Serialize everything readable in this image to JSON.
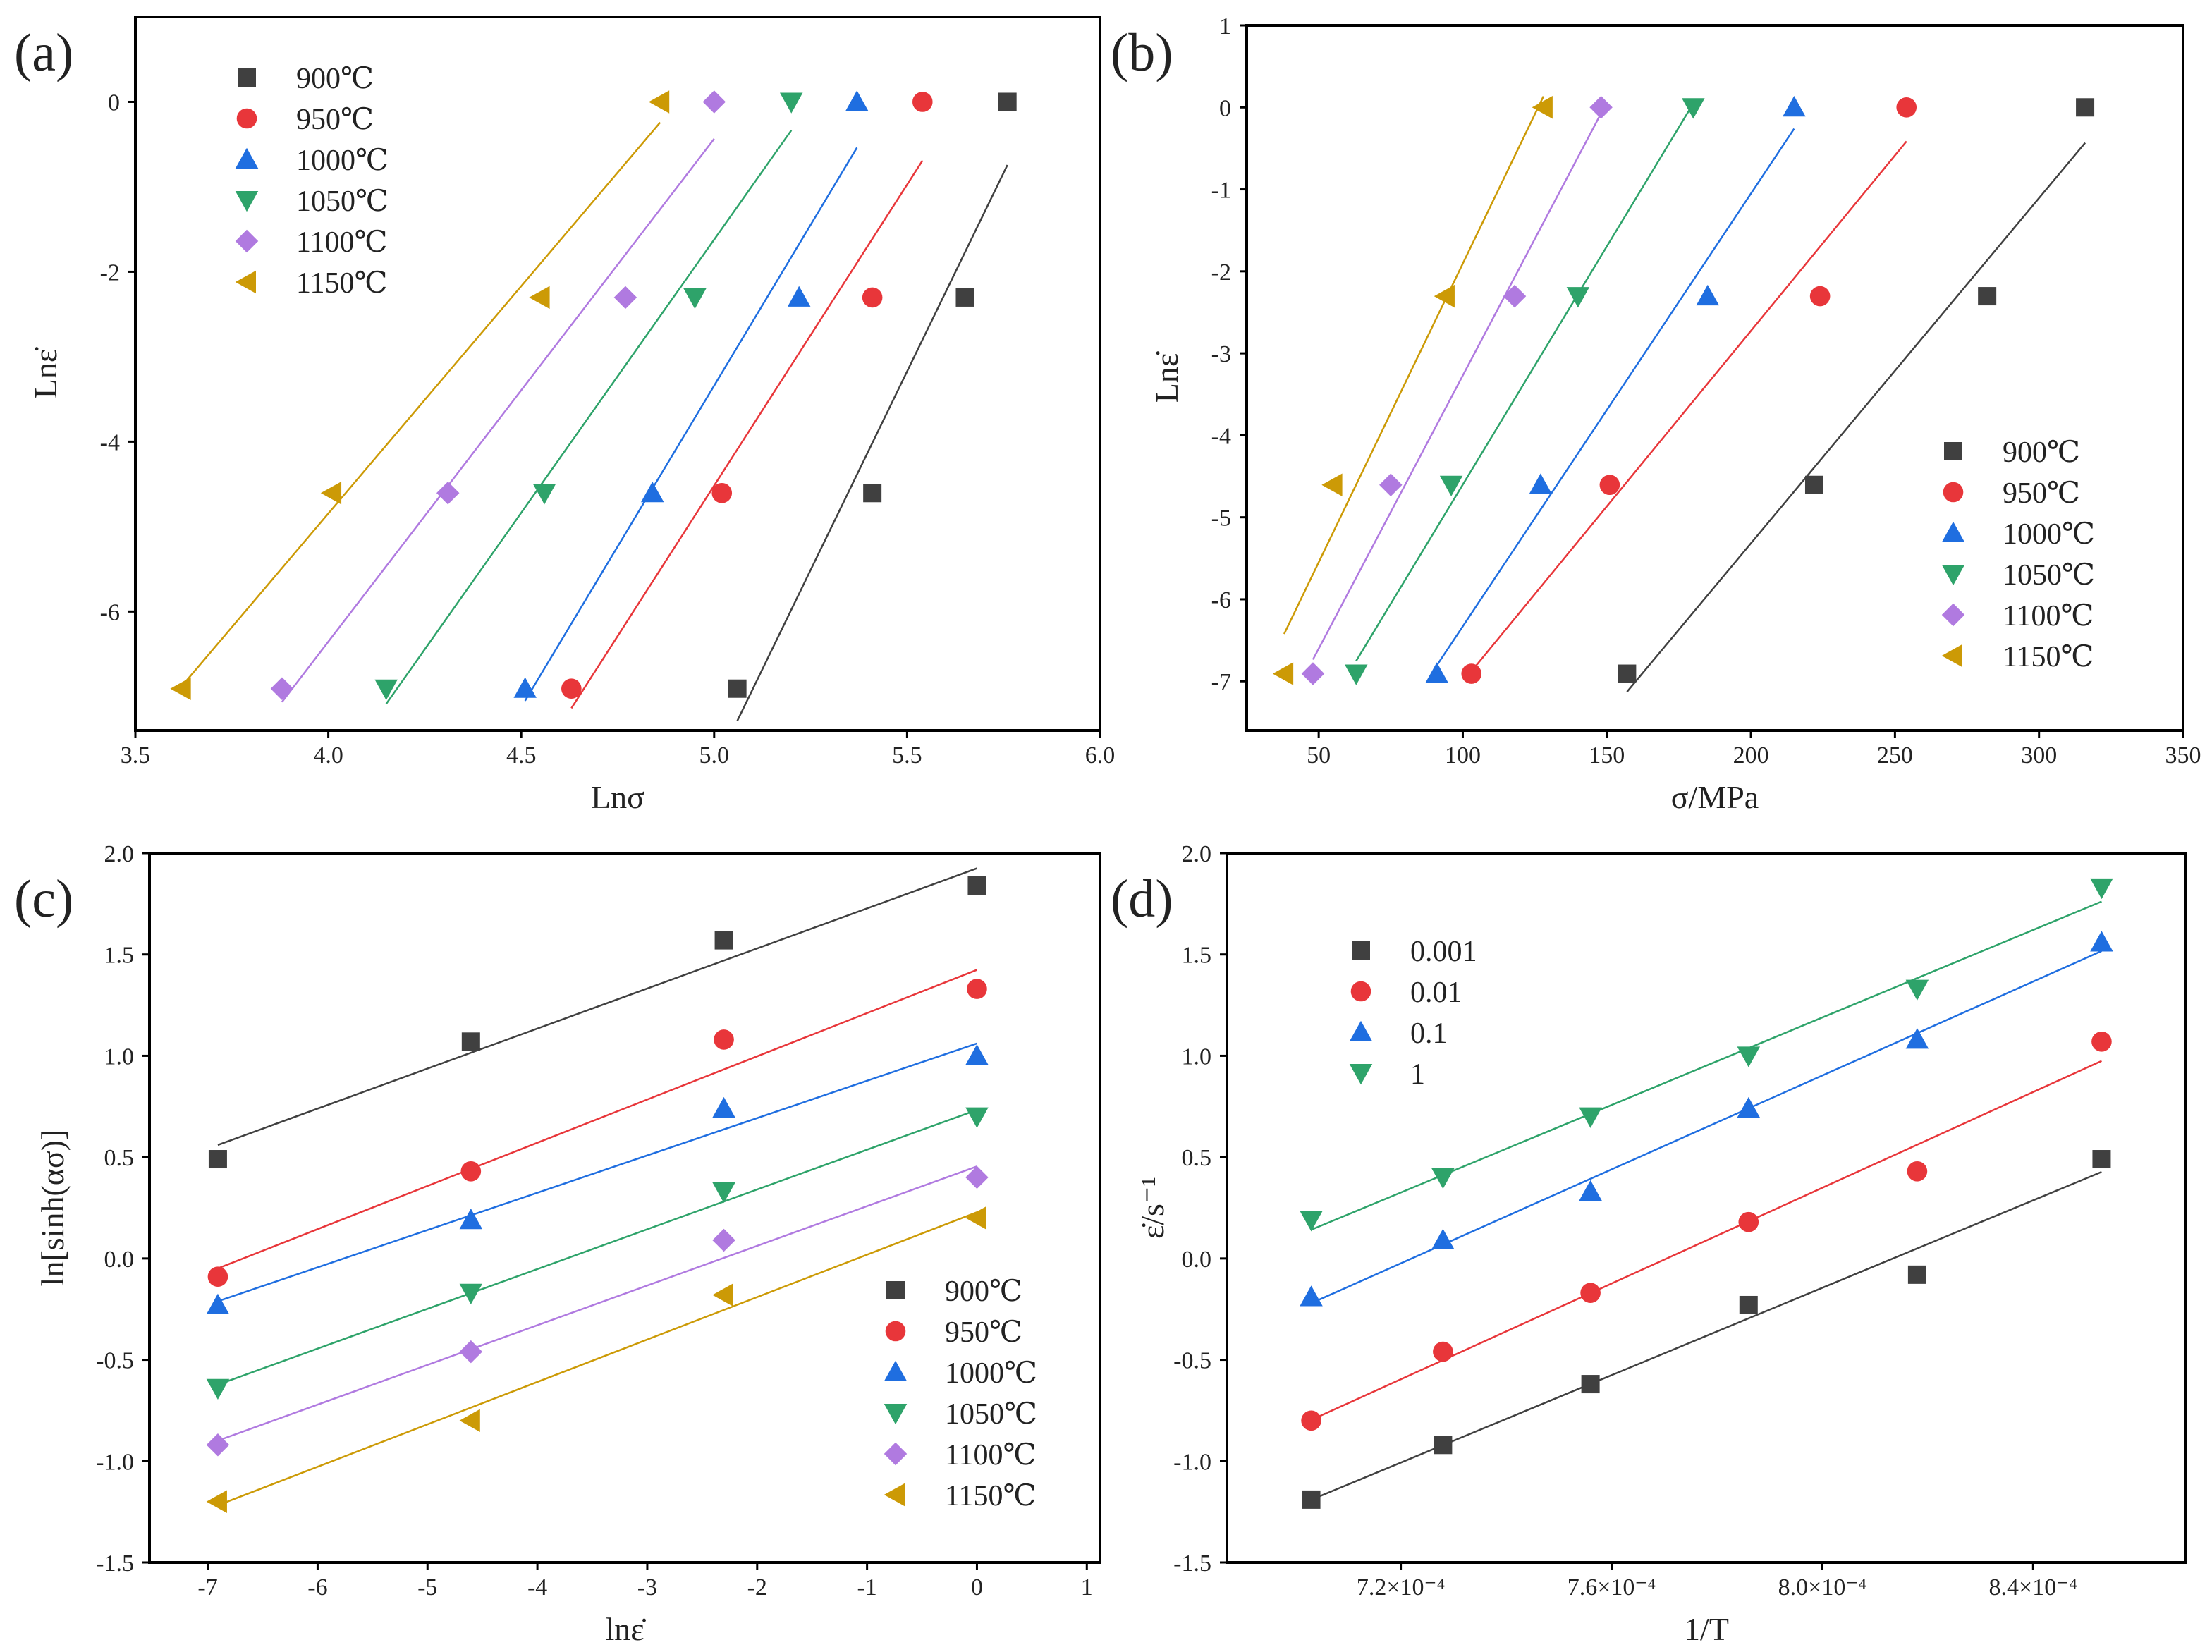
{
  "colors": {
    "900": "#404040",
    "950": "#e8363a",
    "1000": "#1f6ee0",
    "1050": "#2ea36a",
    "1100": "#b07ae0",
    "1150": "#cc9a06"
  },
  "chart_data": [
    {
      "panel": "(a)",
      "type": "scatter",
      "xlabel": "Lnσ",
      "ylabel": "Lnε̇",
      "xlim": [
        3.5,
        6.0
      ],
      "ylim": [
        -7.4,
        1.0
      ],
      "xticks": [
        3.5,
        4.0,
        4.5,
        5.0,
        5.5,
        6.0
      ],
      "xtick_labels": [
        "3.5",
        "4.0",
        "4.5",
        "5.0",
        "5.5",
        "6.0"
      ],
      "yticks": [
        0,
        -2,
        -4,
        -6
      ],
      "ytick_labels": [
        "0",
        "-2",
        "-4",
        "-6"
      ],
      "legend_position": "top-left",
      "y": [
        0,
        -2.303,
        -4.605,
        -6.908
      ],
      "series": [
        {
          "name": "900℃",
          "marker": "square",
          "color": "#404040",
          "x": [
            5.76,
            5.65,
            5.41,
            5.06
          ]
        },
        {
          "name": "950℃",
          "marker": "circle",
          "color": "#e8363a",
          "x": [
            5.54,
            5.41,
            5.02,
            4.63
          ]
        },
        {
          "name": "1000℃",
          "marker": "triangle-up",
          "color": "#1f6ee0",
          "x": [
            5.37,
            5.22,
            4.84,
            4.51
          ]
        },
        {
          "name": "1050℃",
          "marker": "triangle-down",
          "color": "#2ea36a",
          "x": [
            5.2,
            4.95,
            4.56,
            4.15
          ]
        },
        {
          "name": "1100℃",
          "marker": "diamond",
          "color": "#b07ae0",
          "x": [
            5.0,
            4.77,
            4.31,
            3.88
          ]
        },
        {
          "name": "1150℃",
          "marker": "triangle-left",
          "color": "#cc9a06",
          "x": [
            4.86,
            4.55,
            4.01,
            3.62
          ]
        }
      ]
    },
    {
      "panel": "(b)",
      "type": "scatter",
      "xlabel": "σ/MPa",
      "ylabel": "Lnε̇",
      "xlim": [
        25,
        350
      ],
      "ylim": [
        -7.6,
        1.0
      ],
      "xticks": [
        50,
        100,
        150,
        200,
        250,
        300,
        350
      ],
      "xtick_labels": [
        "50",
        "100",
        "150",
        "200",
        "250",
        "300",
        "350"
      ],
      "yticks": [
        1,
        0,
        -1,
        -2,
        -3,
        -4,
        -5,
        -6,
        -7
      ],
      "ytick_labels": [
        "1",
        "0",
        "-1",
        "-2",
        "-3",
        "-4",
        "-5",
        "-6",
        "-7"
      ],
      "legend_position": "bottom-right",
      "y": [
        0,
        -2.303,
        -4.605,
        -6.908
      ],
      "series": [
        {
          "name": "900℃",
          "marker": "square",
          "color": "#404040",
          "x": [
            316,
            282,
            222,
            157
          ]
        },
        {
          "name": "950℃",
          "marker": "circle",
          "color": "#e8363a",
          "x": [
            254,
            224,
            151,
            103
          ]
        },
        {
          "name": "1000℃",
          "marker": "triangle-up",
          "color": "#1f6ee0",
          "x": [
            215,
            185,
            127,
            91
          ]
        },
        {
          "name": "1050℃",
          "marker": "triangle-down",
          "color": "#2ea36a",
          "x": [
            180,
            140,
            96,
            63
          ]
        },
        {
          "name": "1100℃",
          "marker": "diamond",
          "color": "#b07ae0",
          "x": [
            148,
            118,
            75,
            48
          ]
        },
        {
          "name": "1150℃",
          "marker": "triangle-left",
          "color": "#cc9a06",
          "x": [
            128,
            94,
            55,
            38
          ]
        }
      ]
    },
    {
      "panel": "(c)",
      "type": "scatter",
      "xlabel": "lnε̇",
      "ylabel": "ln[sinh(ασ)]",
      "xlim": [
        -7.53,
        1.12
      ],
      "ylim": [
        -1.5,
        2.0
      ],
      "xticks": [
        -7,
        -6,
        -5,
        -4,
        -3,
        -2,
        -1,
        0,
        1
      ],
      "xtick_labels": [
        "-7",
        "-6",
        "-5",
        "-4",
        "-3",
        "-2",
        "-1",
        "0",
        "1"
      ],
      "yticks": [
        2.0,
        1.5,
        1.0,
        0.5,
        0.0,
        -0.5,
        -1.0,
        -1.5
      ],
      "ytick_labels": [
        "2.0",
        "1.5",
        "1.0",
        "0.5",
        "0.0",
        "-0.5",
        "-1.0",
        "-1.5"
      ],
      "legend_position": "bottom-right",
      "x": [
        -6.908,
        -4.605,
        -2.303,
        0
      ],
      "series": [
        {
          "name": "900℃",
          "marker": "square",
          "color": "#404040",
          "y": [
            0.49,
            1.07,
            1.57,
            1.84
          ]
        },
        {
          "name": "950℃",
          "marker": "circle",
          "color": "#e8363a",
          "y": [
            -0.09,
            0.43,
            1.08,
            1.33
          ]
        },
        {
          "name": "1000℃",
          "marker": "triangle-up",
          "color": "#1f6ee0",
          "y": [
            -0.23,
            0.19,
            0.74,
            1.0
          ]
        },
        {
          "name": "1050℃",
          "marker": "triangle-down",
          "color": "#2ea36a",
          "y": [
            -0.64,
            -0.17,
            0.33,
            0.7
          ]
        },
        {
          "name": "1100℃",
          "marker": "diamond",
          "color": "#b07ae0",
          "y": [
            -0.92,
            -0.46,
            0.09,
            0.4
          ]
        },
        {
          "name": "1150℃",
          "marker": "triangle-left",
          "color": "#cc9a06",
          "y": [
            -1.2,
            -0.8,
            -0.18,
            0.2
          ]
        }
      ]
    },
    {
      "panel": "(d)",
      "type": "scatter",
      "xlabel": "1/T",
      "ylabel": "ε̇/s⁻¹",
      "xlim": [
        0.000687,
        0.000869
      ],
      "ylim": [
        -1.5,
        2.0
      ],
      "xticks": [
        0.00072,
        0.00076,
        0.0008,
        0.00084
      ],
      "xtick_labels": [
        "7.2×10⁻⁴",
        "7.6×10⁻⁴",
        "8.0×10⁻⁴",
        "8.4×10⁻⁴"
      ],
      "yticks": [
        2.0,
        1.5,
        1.0,
        0.5,
        0.0,
        -0.5,
        -1.0,
        -1.5
      ],
      "ytick_labels": [
        "2.0",
        "1.5",
        "1.0",
        "0.5",
        "0.0",
        "-0.5",
        "-1.0",
        "-1.5"
      ],
      "legend_position": "top-left",
      "x": [
        0.000703,
        0.000728,
        0.000756,
        0.000786,
        0.000818,
        0.000853
      ],
      "series": [
        {
          "name": "0.001",
          "marker": "square",
          "color": "#404040",
          "y": [
            -1.19,
            -0.92,
            -0.62,
            -0.23,
            -0.08,
            0.49
          ]
        },
        {
          "name": "0.01",
          "marker": "circle",
          "color": "#e8363a",
          "y": [
            -0.8,
            -0.46,
            -0.17,
            0.18,
            0.43,
            1.07
          ]
        },
        {
          "name": "0.1",
          "marker": "triangle-up",
          "color": "#1f6ee0",
          "y": [
            -0.19,
            0.09,
            0.33,
            0.74,
            1.08,
            1.56
          ]
        },
        {
          "name": "1",
          "marker": "triangle-down",
          "color": "#2ea36a",
          "y": [
            0.19,
            0.4,
            0.7,
            1.0,
            1.33,
            1.83
          ]
        }
      ]
    }
  ]
}
